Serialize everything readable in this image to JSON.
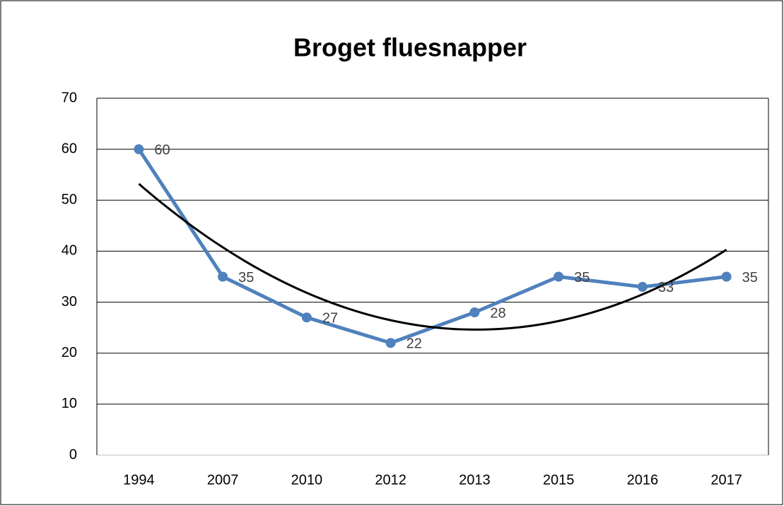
{
  "chart_data": {
    "type": "line",
    "title": "Broget fluesnapper",
    "categories": [
      "1994",
      "2007",
      "2010",
      "2012",
      "2013",
      "2015",
      "2016",
      "2017"
    ],
    "series": [
      {
        "name": "Broget fluesnapper",
        "color": "#4f81bd",
        "values": [
          60,
          35,
          27,
          22,
          28,
          35,
          33,
          35
        ]
      }
    ],
    "ylim": [
      0,
      70
    ],
    "yticks": [
      0,
      10,
      20,
      30,
      40,
      50,
      60,
      70
    ],
    "grid": true,
    "data_labels": true,
    "legend": false,
    "trendline": {
      "type": "polynomial",
      "order": 2,
      "color": "#000000"
    }
  }
}
